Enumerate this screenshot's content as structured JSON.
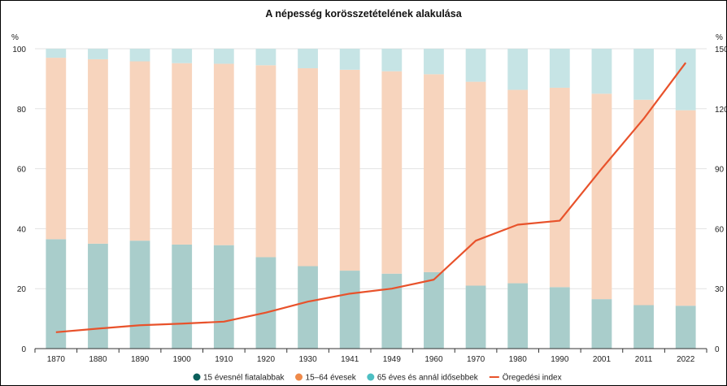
{
  "chart_data": {
    "type": "bar",
    "title": "A népesség korösszetételének alakulása",
    "left_axis_unit": "%",
    "right_axis_unit": "%",
    "categories": [
      "1870",
      "1880",
      "1890",
      "1900",
      "1910",
      "1920",
      "1930",
      "1941",
      "1949",
      "1960",
      "1970",
      "1980",
      "1990",
      "2001",
      "2011",
      "2022"
    ],
    "ylim": [
      0,
      100
    ],
    "yticks": [
      0,
      20,
      40,
      60,
      80,
      100
    ],
    "y2lim": [
      0,
      150
    ],
    "y2ticks": [
      0,
      30,
      60,
      90,
      120,
      150
    ],
    "grid": true,
    "legend_position": "bottom",
    "series": [
      {
        "name": "15 évesnél fiatalabbak",
        "kind": "stacked-bar",
        "color": "#a9cdcb",
        "legend_color": "#0b5f5b",
        "values": [
          36.5,
          35,
          36,
          34.7,
          34.5,
          30.5,
          27.5,
          26,
          25,
          25.5,
          21,
          21.8,
          20.5,
          16.5,
          14.5,
          14.3
        ]
      },
      {
        "name": "15–64 évesek",
        "kind": "stacked-bar",
        "color": "#f7d4bd",
        "legend_color": "#ef8a4a",
        "values": [
          60.5,
          61.5,
          59.8,
          60.5,
          60.5,
          64,
          66,
          67,
          67.5,
          66,
          68,
          64.5,
          66.5,
          68.5,
          68.5,
          65.2
        ]
      },
      {
        "name": "65 éves és annál idősebbek",
        "kind": "stacked-bar",
        "color": "#c6e4e5",
        "legend_color": "#4dbfc3",
        "values": [
          3,
          3.5,
          4.2,
          4.8,
          5,
          5.5,
          6.5,
          7,
          7.5,
          8.5,
          11,
          13.7,
          13,
          15,
          17,
          20.5
        ]
      },
      {
        "name": "Öregedési index",
        "kind": "line",
        "axis": "right",
        "color": "#e8522b",
        "legend_color": "#e8522b",
        "values": [
          8.2,
          10,
          11.7,
          12.5,
          13.5,
          18,
          23.5,
          27.5,
          30,
          34.5,
          54,
          62,
          64,
          90,
          115,
          143
        ]
      }
    ]
  }
}
